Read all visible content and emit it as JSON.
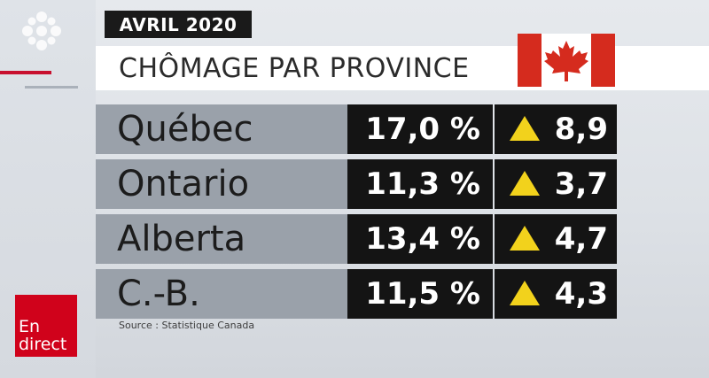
{
  "header": {
    "date": "AVRIL 2020",
    "title": "CHÔMAGE PAR PROVINCE"
  },
  "rows": [
    {
      "province": "Québec",
      "rate": "17,0 %",
      "change": "8,9"
    },
    {
      "province": "Ontario",
      "rate": "11,3 %",
      "change": "3,7"
    },
    {
      "province": "Alberta",
      "rate": "13,4 %",
      "change": "4,7"
    },
    {
      "province": "C.-B.",
      "rate": "11,5 %",
      "change": "4,3"
    }
  ],
  "source": "Source : Statistique Canada",
  "live_badge": {
    "line1": "En",
    "line2": "direct"
  },
  "icons": {
    "logo": "cbc-gem-logo-icon",
    "flag": "canada-flag-icon",
    "increase": "up-triangle-icon"
  },
  "colors": {
    "increase": "#f2d21c",
    "live": "#d0021b",
    "flag_red": "#d52b1e"
  }
}
